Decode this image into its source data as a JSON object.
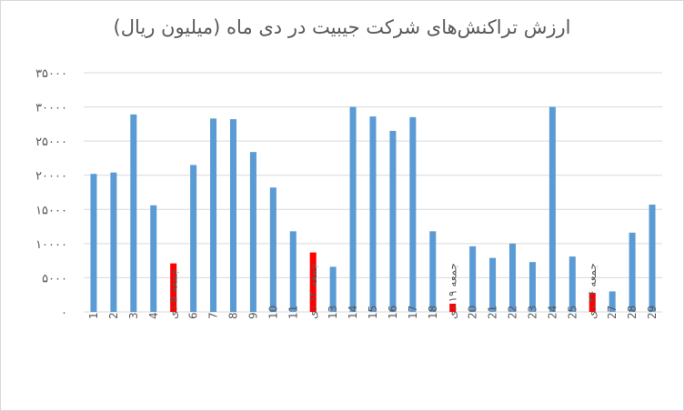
{
  "chart_data": {
    "type": "bar",
    "title": "ارزش تراکنش‌های شرکت جیبیت در دی ماه (میلیون ریال)",
    "xlabel": "",
    "ylabel": "",
    "ylim": [
      0,
      35000
    ],
    "y_ticks": [
      0,
      5000,
      10000,
      15000,
      20000,
      25000,
      30000,
      35000
    ],
    "y_tick_labels": [
      "۰",
      "۵۰۰۰",
      "۱۰۰۰۰",
      "۱۵۰۰۰",
      "۲۰۰۰۰",
      "۲۵۰۰۰",
      "۳۰۰۰۰",
      "۳۵۰۰۰"
    ],
    "grid": true,
    "legend": "none",
    "categories": [
      "1",
      "2",
      "3",
      "4",
      "جمعه ۵ دی",
      "6",
      "7",
      "8",
      "9",
      "10",
      "11",
      "جمعه ۱۲ دی",
      "13",
      "14",
      "15",
      "16",
      "17",
      "18",
      "جمعه ۱۹ دی",
      "20",
      "21",
      "22",
      "23",
      "24",
      "25",
      "جمعه ۲۶ دی",
      "27",
      "28",
      "29"
    ],
    "values": [
      20200,
      20400,
      28900,
      15600,
      7100,
      21500,
      28300,
      28200,
      23400,
      18200,
      11800,
      8700,
      6600,
      30000,
      28600,
      26500,
      28500,
      11800,
      1200,
      9600,
      7900,
      10000,
      7300,
      30000,
      8100,
      2800,
      3000,
      11600,
      15700
    ],
    "highlighted": [
      false,
      false,
      false,
      false,
      true,
      false,
      false,
      false,
      false,
      false,
      false,
      true,
      false,
      false,
      false,
      false,
      false,
      false,
      true,
      false,
      false,
      false,
      false,
      false,
      false,
      true,
      false,
      false,
      false
    ],
    "colors": {
      "normal": "#5b9bd5",
      "highlight": "#ff0000",
      "grid": "#d9d9d9",
      "text": "#595959"
    }
  }
}
